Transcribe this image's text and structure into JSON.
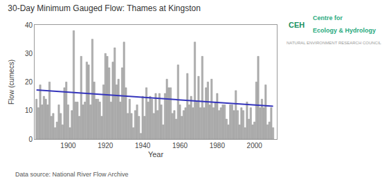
{
  "chart_data": {
    "type": "bar",
    "title": "30-Day Minimum Gauged Flow: Thames at Kingston",
    "xlabel": "Year",
    "ylabel": "Flow (cumecs)",
    "series": [
      {
        "type": "bar",
        "color": "#b0b0b0",
        "x": [
          1883,
          1884,
          1885,
          1886,
          1887,
          1888,
          1889,
          1890,
          1891,
          1892,
          1893,
          1894,
          1895,
          1896,
          1897,
          1898,
          1899,
          1900,
          1901,
          1902,
          1903,
          1904,
          1905,
          1906,
          1907,
          1908,
          1909,
          1910,
          1911,
          1912,
          1913,
          1914,
          1915,
          1916,
          1917,
          1918,
          1919,
          1920,
          1921,
          1922,
          1923,
          1924,
          1925,
          1926,
          1927,
          1928,
          1929,
          1930,
          1931,
          1932,
          1933,
          1934,
          1935,
          1936,
          1937,
          1938,
          1939,
          1940,
          1941,
          1942,
          1943,
          1944,
          1945,
          1946,
          1947,
          1948,
          1949,
          1950,
          1951,
          1952,
          1953,
          1954,
          1955,
          1956,
          1957,
          1958,
          1959,
          1960,
          1961,
          1962,
          1963,
          1964,
          1965,
          1966,
          1967,
          1968,
          1969,
          1970,
          1971,
          1972,
          1973,
          1974,
          1975,
          1976,
          1977,
          1978,
          1979,
          1980,
          1981,
          1982,
          1983,
          1984,
          1985,
          1986,
          1987,
          1988,
          1989,
          1990,
          1991,
          1992,
          1993,
          1994,
          1995,
          1996,
          1997,
          1998,
          1999,
          2000,
          2001,
          2002,
          2003,
          2004,
          2005,
          2006,
          2007,
          2008,
          2009,
          2010
        ],
        "values": [
          14,
          11,
          19,
          12,
          15,
          14,
          12,
          20,
          8,
          9,
          4,
          6,
          12,
          9,
          5,
          18,
          20,
          12,
          4,
          10,
          38,
          13,
          13,
          8,
          29,
          12,
          13,
          27,
          26,
          12,
          35,
          20,
          14,
          14,
          13,
          8,
          19,
          30,
          29,
          25,
          13,
          27,
          32,
          19,
          21,
          13,
          25,
          34,
          18,
          9,
          14,
          9,
          4,
          10,
          12,
          8,
          2,
          15,
          8,
          18,
          13,
          15,
          14,
          9,
          16,
          10,
          16,
          12,
          5,
          16,
          21,
          18,
          18,
          9,
          10,
          7,
          26,
          12,
          8,
          10,
          11,
          23,
          12,
          15,
          11,
          34,
          13,
          22,
          11,
          29,
          11,
          18,
          20,
          12,
          21,
          11,
          13,
          16,
          10,
          11,
          12,
          12,
          7,
          5,
          12,
          12,
          10,
          17,
          10,
          5,
          11,
          10,
          4,
          13,
          7,
          11,
          5,
          6,
          20,
          29,
          11,
          14,
          11,
          19,
          5,
          6,
          11,
          4
        ]
      },
      {
        "type": "line",
        "color": "#3333bb",
        "x": [
          1883,
          2010
        ],
        "values": [
          17.2,
          11.5
        ]
      }
    ],
    "xlim": [
      1882,
      2012
    ],
    "xticks": [
      1900,
      1920,
      1940,
      1960,
      1980,
      2000
    ],
    "ylim": [
      0,
      40
    ],
    "yticks": [
      0,
      10,
      20,
      30,
      40
    ],
    "grid": false,
    "annotations": [
      "Data source: National River Flow Archive",
      "CEH",
      "Centre for",
      "Ecology & Hydrology",
      "NATURAL ENVIRONMENT RESEARCH COUNCIL"
    ]
  }
}
